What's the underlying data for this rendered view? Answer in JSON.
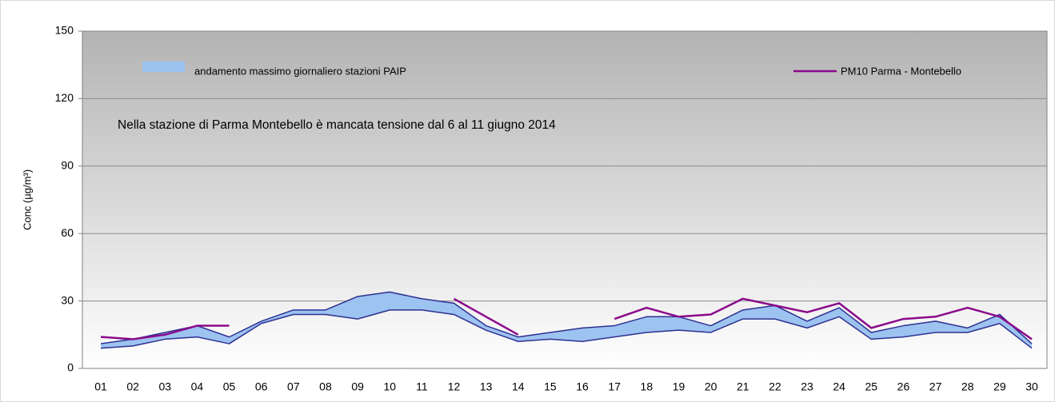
{
  "chart_data": {
    "type": "line",
    "ylabel": "Conc (µg/m³)",
    "annotation": "Nella stazione di Parma Montebello è mancata tensione dal 6 al 11 giugno 2014",
    "categories": [
      "01",
      "02",
      "03",
      "04",
      "05",
      "06",
      "07",
      "08",
      "09",
      "10",
      "11",
      "12",
      "13",
      "14",
      "15",
      "16",
      "17",
      "18",
      "19",
      "20",
      "21",
      "22",
      "23",
      "24",
      "25",
      "26",
      "27",
      "28",
      "29",
      "30"
    ],
    "ylim": [
      0,
      150
    ],
    "yticks": [
      0,
      30,
      60,
      90,
      120,
      150
    ],
    "grid": true,
    "series": [
      {
        "name": "andamento massimo  giornaliero stazioni PAIP",
        "type": "band",
        "color": "#2e3192",
        "fill": "#9dc3f0",
        "upper": [
          11,
          13,
          16,
          19,
          14,
          21,
          26,
          26,
          32,
          34,
          31,
          29,
          19,
          14,
          16,
          18,
          19,
          23,
          23,
          19,
          26,
          28,
          21,
          27,
          16,
          19,
          21,
          18,
          24,
          11
        ],
        "lower": [
          9,
          10,
          13,
          14,
          11,
          20,
          24,
          24,
          22,
          26,
          26,
          24,
          17,
          12,
          13,
          12,
          14,
          16,
          17,
          16,
          22,
          22,
          18,
          23,
          13,
          14,
          16,
          16,
          20,
          9
        ]
      },
      {
        "name": "PM10 Parma - Montebello",
        "color": "#8b0a8b",
        "values": [
          14,
          13,
          15,
          19,
          19,
          null,
          null,
          null,
          null,
          null,
          null,
          31,
          23,
          15,
          null,
          null,
          22,
          27,
          23,
          24,
          31,
          28,
          25,
          29,
          18,
          22,
          23,
          27,
          23,
          13
        ]
      }
    ]
  }
}
